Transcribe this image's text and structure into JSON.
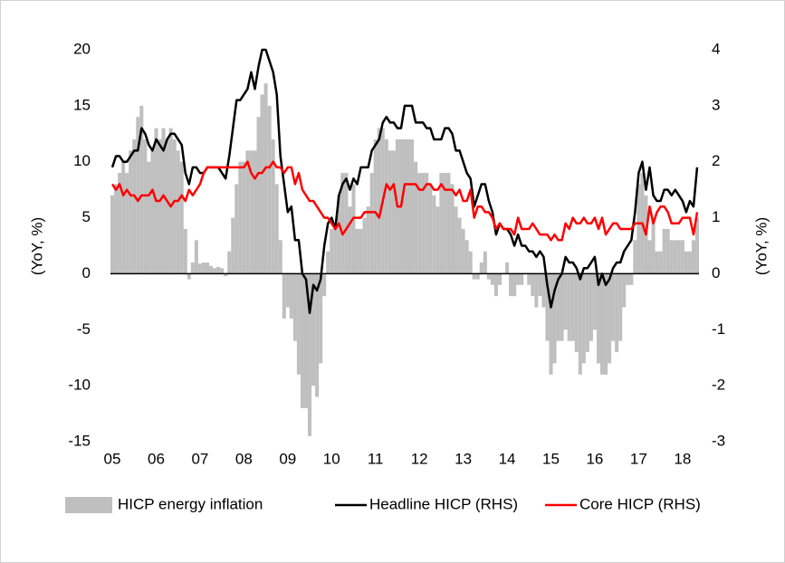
{
  "chart_data": {
    "type": "bar",
    "categories": [
      "05",
      null,
      null,
      null,
      null,
      null,
      null,
      null,
      null,
      null,
      null,
      null,
      "06",
      null,
      null,
      null,
      null,
      null,
      null,
      null,
      null,
      null,
      null,
      null,
      "07",
      null,
      null,
      null,
      null,
      null,
      null,
      null,
      null,
      null,
      null,
      null,
      "08",
      null,
      null,
      null,
      null,
      null,
      null,
      null,
      null,
      null,
      null,
      null,
      "09",
      null,
      null,
      null,
      null,
      null,
      null,
      null,
      null,
      null,
      null,
      null,
      "10",
      null,
      null,
      null,
      null,
      null,
      null,
      null,
      null,
      null,
      null,
      null,
      "11",
      null,
      null,
      null,
      null,
      null,
      null,
      null,
      null,
      null,
      null,
      null,
      "12",
      null,
      null,
      null,
      null,
      null,
      null,
      null,
      null,
      null,
      null,
      null,
      "13",
      null,
      null,
      null,
      null,
      null,
      null,
      null,
      null,
      null,
      null,
      null,
      "14",
      null,
      null,
      null,
      null,
      null,
      null,
      null,
      null,
      null,
      null,
      null,
      "15",
      null,
      null,
      null,
      null,
      null,
      null,
      null,
      null,
      null,
      null,
      null,
      "16",
      null,
      null,
      null,
      null,
      null,
      null,
      null,
      null,
      null,
      null,
      null,
      "17",
      null,
      null,
      null,
      null,
      null,
      null,
      null,
      null,
      null,
      null,
      null,
      "18",
      null,
      null,
      null,
      null
    ],
    "series": [
      {
        "name": "HICP energy inflation",
        "type": "bar",
        "color": "#bfbfbf",
        "values": [
          7,
          8,
          9,
          10,
          9,
          11,
          12,
          14,
          15,
          12,
          10,
          11,
          13,
          12,
          13,
          12,
          13,
          12,
          11,
          10,
          4,
          -0.5,
          1,
          3,
          0.9,
          1,
          1,
          0.7,
          0.5,
          0.6,
          0.5,
          -0.2,
          2,
          5,
          8,
          10,
          10,
          11,
          11,
          11,
          14,
          16,
          17,
          15,
          12,
          8,
          3,
          -4,
          -3,
          -4,
          -6,
          -9,
          -12,
          -12,
          -14.5,
          -10,
          -11,
          -8,
          -2,
          2,
          4,
          4,
          7,
          9,
          9,
          6,
          8,
          4,
          4,
          5,
          6,
          9,
          12,
          13,
          13,
          12,
          11,
          11,
          12,
          12,
          12,
          12,
          12,
          10,
          9,
          9,
          9,
          8,
          7,
          6,
          9,
          9,
          9,
          8,
          6,
          5,
          4,
          3,
          2,
          -0.5,
          -0.5,
          1,
          2,
          -0.5,
          -1,
          -2,
          -1,
          0,
          1,
          -2,
          -2,
          -1,
          -1,
          0,
          -1,
          -2,
          -3,
          -2,
          -3,
          -6,
          -9,
          -8,
          -6,
          -6,
          -5,
          -6,
          -6,
          -7,
          -9,
          -8,
          -7,
          -6,
          -5,
          -8,
          -9,
          -9,
          -8,
          -6,
          -7,
          -6,
          -3,
          -1,
          -1,
          3,
          8,
          9,
          7,
          3,
          5,
          2,
          2,
          4,
          4,
          3,
          3,
          3,
          3,
          2,
          2,
          3,
          5
        ]
      },
      {
        "name": "Headline HICP (RHS)",
        "type": "line",
        "axis": "y2",
        "color": "#000000",
        "values": [
          1.9,
          2.1,
          2.1,
          2.0,
          2.0,
          2.1,
          2.2,
          2.2,
          2.6,
          2.5,
          2.3,
          2.2,
          2.4,
          2.3,
          2.2,
          2.4,
          2.5,
          2.5,
          2.4,
          2.3,
          1.8,
          1.6,
          1.9,
          1.9,
          1.8,
          1.8,
          1.9,
          1.9,
          1.9,
          1.9,
          1.8,
          1.7,
          2.1,
          2.6,
          3.1,
          3.1,
          3.2,
          3.3,
          3.6,
          3.3,
          3.7,
          4.0,
          4.0,
          3.8,
          3.6,
          3.2,
          2.1,
          1.6,
          1.1,
          1.2,
          0.6,
          0.6,
          0.0,
          -0.1,
          -0.7,
          -0.2,
          -0.3,
          -0.1,
          0.5,
          0.9,
          1.0,
          0.8,
          1.4,
          1.6,
          1.7,
          1.5,
          1.7,
          1.6,
          1.9,
          1.9,
          1.9,
          2.2,
          2.3,
          2.4,
          2.7,
          2.8,
          2.7,
          2.7,
          2.6,
          2.6,
          3.0,
          3.0,
          3.0,
          2.7,
          2.7,
          2.7,
          2.6,
          2.6,
          2.4,
          2.4,
          2.4,
          2.6,
          2.6,
          2.5,
          2.2,
          2.2,
          2.0,
          1.8,
          1.7,
          1.2,
          1.4,
          1.6,
          1.6,
          1.3,
          1.1,
          0.7,
          0.9,
          0.8,
          0.8,
          0.7,
          0.5,
          0.7,
          0.5,
          0.5,
          0.4,
          0.4,
          0.3,
          0.4,
          0.3,
          -0.2,
          -0.6,
          -0.3,
          -0.1,
          0.0,
          0.3,
          0.2,
          0.2,
          0.1,
          -0.1,
          0.1,
          0.1,
          0.2,
          0.3,
          -0.2,
          0.0,
          -0.2,
          -0.1,
          0.1,
          0.2,
          0.2,
          0.4,
          0.5,
          0.6,
          1.1,
          1.8,
          2.0,
          1.5,
          1.9,
          1.4,
          1.3,
          1.3,
          1.5,
          1.5,
          1.4,
          1.5,
          1.4,
          1.3,
          1.1,
          1.3,
          1.2,
          1.9
        ]
      },
      {
        "name": "Core HICP (RHS)",
        "type": "line",
        "axis": "y2",
        "color": "#ff0000",
        "values": [
          1.6,
          1.5,
          1.6,
          1.4,
          1.5,
          1.4,
          1.4,
          1.3,
          1.4,
          1.4,
          1.4,
          1.5,
          1.3,
          1.3,
          1.4,
          1.3,
          1.2,
          1.3,
          1.3,
          1.4,
          1.3,
          1.5,
          1.4,
          1.5,
          1.6,
          1.8,
          1.9,
          1.9,
          1.9,
          1.9,
          1.9,
          1.9,
          1.9,
          1.9,
          1.9,
          1.9,
          1.9,
          2.0,
          1.8,
          1.7,
          1.8,
          1.8,
          1.9,
          1.9,
          2.0,
          1.9,
          1.9,
          1.8,
          1.9,
          1.9,
          1.6,
          1.8,
          1.5,
          1.4,
          1.3,
          1.3,
          1.2,
          1.1,
          1.0,
          1.0,
          0.9,
          0.8,
          0.9,
          0.7,
          0.8,
          0.9,
          1.0,
          1.0,
          1.0,
          1.1,
          1.1,
          1.1,
          1.1,
          1.0,
          1.3,
          1.6,
          1.5,
          1.6,
          1.2,
          1.2,
          1.6,
          1.6,
          1.6,
          1.6,
          1.5,
          1.5,
          1.6,
          1.6,
          1.5,
          1.5,
          1.6,
          1.5,
          1.5,
          1.5,
          1.4,
          1.5,
          1.3,
          1.3,
          1.5,
          1.0,
          1.2,
          1.2,
          1.1,
          1.1,
          1.0,
          0.8,
          0.9,
          0.8,
          0.8,
          0.8,
          0.7,
          1.0,
          0.8,
          0.8,
          0.8,
          0.9,
          0.8,
          0.7,
          0.7,
          0.7,
          0.6,
          0.7,
          0.6,
          0.6,
          0.9,
          0.8,
          1.0,
          0.9,
          0.9,
          1.0,
          0.9,
          0.9,
          1.0,
          0.8,
          1.0,
          0.7,
          0.8,
          0.9,
          0.9,
          0.8,
          0.8,
          0.8,
          0.8,
          0.9,
          0.9,
          0.9,
          0.7,
          1.2,
          0.9,
          1.1,
          1.2,
          1.2,
          1.1,
          0.9,
          0.9,
          0.9,
          1.0,
          1.0,
          1.0,
          0.7,
          1.1
        ]
      }
    ],
    "ylabel": "(YoY, %)",
    "y2label": "(YoY, %)",
    "ylim": [
      -15,
      20
    ],
    "yticks": [
      -15,
      -10,
      -5,
      0,
      5,
      10,
      15,
      20
    ],
    "y2lim": [
      -3,
      4
    ],
    "y2ticks": [
      -3,
      -2,
      -1,
      0,
      1,
      2,
      3,
      4
    ],
    "legend": "bottom"
  }
}
